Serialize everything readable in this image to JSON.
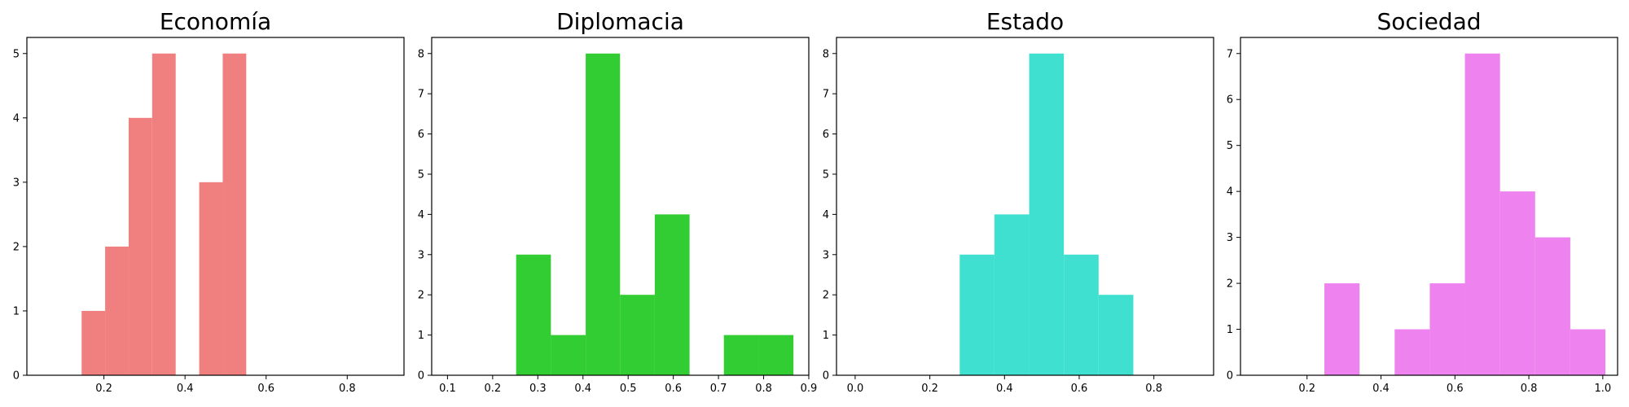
{
  "chart_data": [
    {
      "type": "histogram",
      "title": "Economía",
      "color": "#f08080",
      "xlim": [
        0.01,
        0.94
      ],
      "ylim": [
        0,
        5.25
      ],
      "xticks": [
        {
          "value": 0.2,
          "label": "0.2"
        },
        {
          "value": 0.4,
          "label": "0.4"
        },
        {
          "value": 0.6,
          "label": "0.6"
        },
        {
          "value": 0.8,
          "label": "0.8"
        }
      ],
      "yticks": [
        {
          "value": 0,
          "label": "0"
        },
        {
          "value": 1,
          "label": "1"
        },
        {
          "value": 2,
          "label": "2"
        },
        {
          "value": 3,
          "label": "3"
        },
        {
          "value": 4,
          "label": "4"
        },
        {
          "value": 5,
          "label": "5"
        }
      ],
      "bins": [
        {
          "x0": 0.145,
          "x1": 0.203,
          "count": 1
        },
        {
          "x0": 0.203,
          "x1": 0.261,
          "count": 2
        },
        {
          "x0": 0.261,
          "x1": 0.319,
          "count": 4
        },
        {
          "x0": 0.319,
          "x1": 0.377,
          "count": 5
        },
        {
          "x0": 0.377,
          "x1": 0.435,
          "count": 0
        },
        {
          "x0": 0.435,
          "x1": 0.493,
          "count": 3
        },
        {
          "x0": 0.493,
          "x1": 0.551,
          "count": 5
        }
      ]
    },
    {
      "type": "histogram",
      "title": "Diplomacia",
      "color": "#32cd32",
      "xlim": [
        0.065,
        0.9
      ],
      "ylim": [
        0,
        8.4
      ],
      "xticks": [
        {
          "value": 0.1,
          "label": "0.1"
        },
        {
          "value": 0.2,
          "label": "0.2"
        },
        {
          "value": 0.3,
          "label": "0.3"
        },
        {
          "value": 0.4,
          "label": "0.4"
        },
        {
          "value": 0.5,
          "label": "0.5"
        },
        {
          "value": 0.6,
          "label": "0.6"
        },
        {
          "value": 0.7,
          "label": "0.7"
        },
        {
          "value": 0.8,
          "label": "0.8"
        },
        {
          "value": 0.9,
          "label": "0.9"
        }
      ],
      "yticks": [
        {
          "value": 0,
          "label": "0"
        },
        {
          "value": 1,
          "label": "1"
        },
        {
          "value": 2,
          "label": "2"
        },
        {
          "value": 3,
          "label": "3"
        },
        {
          "value": 4,
          "label": "4"
        },
        {
          "value": 5,
          "label": "5"
        },
        {
          "value": 6,
          "label": "6"
        },
        {
          "value": 7,
          "label": "7"
        },
        {
          "value": 8,
          "label": "8"
        }
      ],
      "bins": [
        {
          "x0": 0.252,
          "x1": 0.329,
          "count": 3
        },
        {
          "x0": 0.329,
          "x1": 0.406,
          "count": 1
        },
        {
          "x0": 0.406,
          "x1": 0.482,
          "count": 8
        },
        {
          "x0": 0.482,
          "x1": 0.559,
          "count": 2
        },
        {
          "x0": 0.559,
          "x1": 0.636,
          "count": 4
        },
        {
          "x0": 0.636,
          "x1": 0.712,
          "count": 0
        },
        {
          "x0": 0.712,
          "x1": 0.789,
          "count": 1
        },
        {
          "x0": 0.789,
          "x1": 0.866,
          "count": 1
        }
      ]
    },
    {
      "type": "histogram",
      "title": "Estado",
      "color": "#40e0d0",
      "xlim": [
        -0.05,
        0.96
      ],
      "ylim": [
        0,
        8.4
      ],
      "xticks": [
        {
          "value": 0.0,
          "label": "0.0"
        },
        {
          "value": 0.2,
          "label": "0.2"
        },
        {
          "value": 0.4,
          "label": "0.4"
        },
        {
          "value": 0.6,
          "label": "0.6"
        },
        {
          "value": 0.8,
          "label": "0.8"
        }
      ],
      "yticks": [
        {
          "value": 0,
          "label": "0"
        },
        {
          "value": 1,
          "label": "1"
        },
        {
          "value": 2,
          "label": "2"
        },
        {
          "value": 3,
          "label": "3"
        },
        {
          "value": 4,
          "label": "4"
        },
        {
          "value": 5,
          "label": "5"
        },
        {
          "value": 6,
          "label": "6"
        },
        {
          "value": 7,
          "label": "7"
        },
        {
          "value": 8,
          "label": "8"
        }
      ],
      "bins": [
        {
          "x0": 0.28,
          "x1": 0.373,
          "count": 3
        },
        {
          "x0": 0.373,
          "x1": 0.466,
          "count": 4
        },
        {
          "x0": 0.466,
          "x1": 0.559,
          "count": 8
        },
        {
          "x0": 0.559,
          "x1": 0.652,
          "count": 3
        },
        {
          "x0": 0.652,
          "x1": 0.745,
          "count": 2
        }
      ]
    },
    {
      "type": "histogram",
      "title": "Sociedad",
      "color": "#ee82ee",
      "xlim": [
        0.02,
        1.04
      ],
      "ylim": [
        0,
        7.35
      ],
      "xticks": [
        {
          "value": 0.2,
          "label": "0.2"
        },
        {
          "value": 0.4,
          "label": "0.4"
        },
        {
          "value": 0.6,
          "label": "0.6"
        },
        {
          "value": 0.8,
          "label": "0.8"
        },
        {
          "value": 1.0,
          "label": "1.0"
        }
      ],
      "yticks": [
        {
          "value": 0,
          "label": "0"
        },
        {
          "value": 1,
          "label": "1"
        },
        {
          "value": 2,
          "label": "2"
        },
        {
          "value": 3,
          "label": "3"
        },
        {
          "value": 4,
          "label": "4"
        },
        {
          "value": 5,
          "label": "5"
        },
        {
          "value": 6,
          "label": "6"
        },
        {
          "value": 7,
          "label": "7"
        }
      ],
      "bins": [
        {
          "x0": 0.247,
          "x1": 0.342,
          "count": 2
        },
        {
          "x0": 0.342,
          "x1": 0.437,
          "count": 0
        },
        {
          "x0": 0.437,
          "x1": 0.532,
          "count": 1
        },
        {
          "x0": 0.532,
          "x1": 0.627,
          "count": 2
        },
        {
          "x0": 0.627,
          "x1": 0.722,
          "count": 7
        },
        {
          "x0": 0.722,
          "x1": 0.817,
          "count": 4
        },
        {
          "x0": 0.817,
          "x1": 0.912,
          "count": 3
        },
        {
          "x0": 0.912,
          "x1": 1.007,
          "count": 1
        }
      ]
    }
  ]
}
